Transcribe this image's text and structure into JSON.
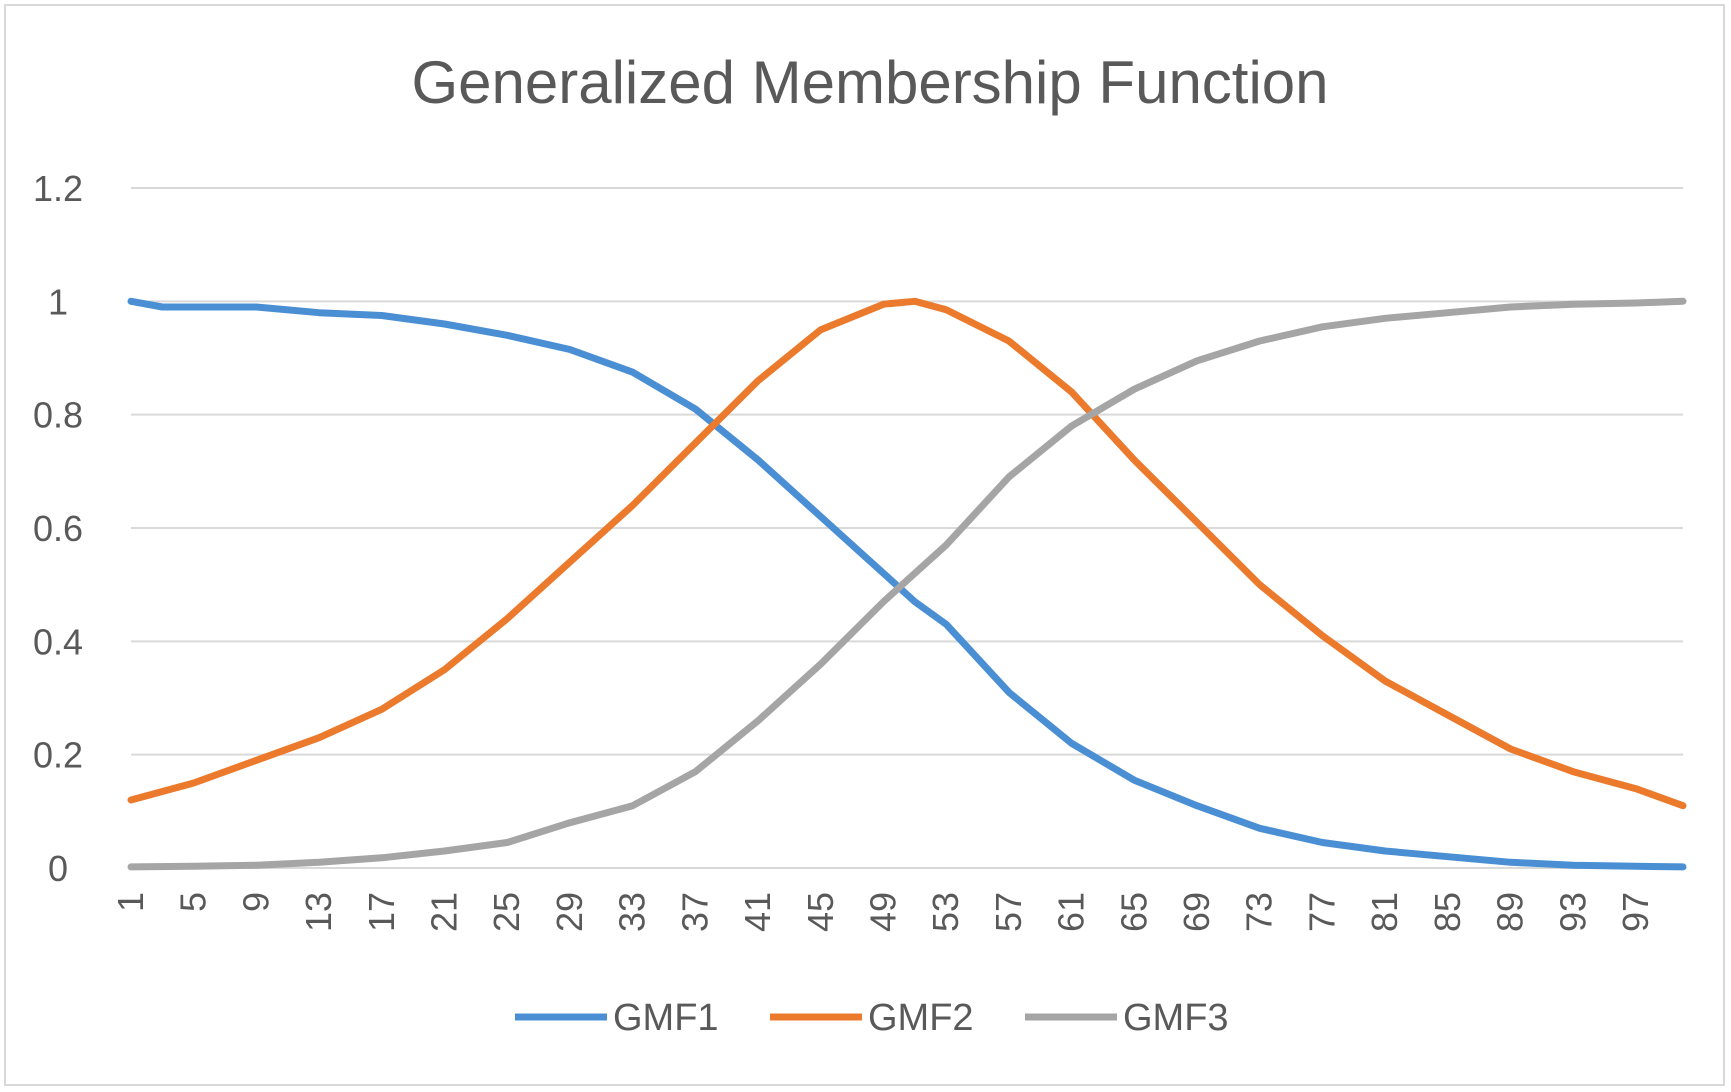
{
  "chart_data": {
    "type": "line",
    "title": "Generalized Membership Function",
    "xlabel": "",
    "ylabel": "",
    "ylim": [
      0,
      1.2
    ],
    "yticks": [
      "0",
      "0.2",
      "0.4",
      "0.6",
      "0.8",
      "1",
      "1.2"
    ],
    "xlim": [
      1,
      100
    ],
    "xticks": [
      "1",
      "5",
      "9",
      "13",
      "17",
      "21",
      "25",
      "29",
      "33",
      "37",
      "41",
      "45",
      "49",
      "53",
      "57",
      "61",
      "65",
      "69",
      "73",
      "77",
      "81",
      "85",
      "89",
      "93",
      "97"
    ],
    "grid": true,
    "legend": "bottom",
    "series": [
      {
        "name": "GMF1",
        "color": "#4a8fd4",
        "points": [
          [
            1,
            1.0
          ],
          [
            3,
            0.99
          ],
          [
            9,
            0.99
          ],
          [
            13,
            0.98
          ],
          [
            17,
            0.975
          ],
          [
            21,
            0.96
          ],
          [
            25,
            0.94
          ],
          [
            29,
            0.915
          ],
          [
            33,
            0.875
          ],
          [
            37,
            0.81
          ],
          [
            41,
            0.72
          ],
          [
            45,
            0.62
          ],
          [
            49,
            0.52
          ],
          [
            51,
            0.47
          ],
          [
            53,
            0.43
          ],
          [
            57,
            0.31
          ],
          [
            61,
            0.22
          ],
          [
            65,
            0.155
          ],
          [
            69,
            0.11
          ],
          [
            73,
            0.07
          ],
          [
            77,
            0.045
          ],
          [
            81,
            0.03
          ],
          [
            85,
            0.02
          ],
          [
            89,
            0.01
          ],
          [
            93,
            0.005
          ],
          [
            97,
            0.003
          ],
          [
            100,
            0.002
          ]
        ]
      },
      {
        "name": "GMF2",
        "color": "#ec7a2c",
        "points": [
          [
            1,
            0.12
          ],
          [
            5,
            0.15
          ],
          [
            9,
            0.19
          ],
          [
            13,
            0.23
          ],
          [
            17,
            0.28
          ],
          [
            21,
            0.35
          ],
          [
            25,
            0.44
          ],
          [
            29,
            0.54
          ],
          [
            33,
            0.64
          ],
          [
            37,
            0.75
          ],
          [
            41,
            0.86
          ],
          [
            45,
            0.95
          ],
          [
            49,
            0.995
          ],
          [
            51,
            1.0
          ],
          [
            53,
            0.985
          ],
          [
            57,
            0.93
          ],
          [
            61,
            0.84
          ],
          [
            65,
            0.72
          ],
          [
            69,
            0.61
          ],
          [
            73,
            0.5
          ],
          [
            77,
            0.41
          ],
          [
            81,
            0.33
          ],
          [
            85,
            0.27
          ],
          [
            89,
            0.21
          ],
          [
            93,
            0.17
          ],
          [
            97,
            0.14
          ],
          [
            100,
            0.11
          ]
        ]
      },
      {
        "name": "GMF3",
        "color": "#a5a5a5",
        "points": [
          [
            1,
            0.002
          ],
          [
            5,
            0.003
          ],
          [
            9,
            0.005
          ],
          [
            13,
            0.01
          ],
          [
            17,
            0.018
          ],
          [
            21,
            0.03
          ],
          [
            25,
            0.045
          ],
          [
            29,
            0.08
          ],
          [
            33,
            0.11
          ],
          [
            37,
            0.17
          ],
          [
            41,
            0.26
          ],
          [
            45,
            0.36
          ],
          [
            49,
            0.47
          ],
          [
            51,
            0.52
          ],
          [
            53,
            0.57
          ],
          [
            57,
            0.69
          ],
          [
            61,
            0.78
          ],
          [
            65,
            0.845
          ],
          [
            69,
            0.895
          ],
          [
            73,
            0.93
          ],
          [
            77,
            0.955
          ],
          [
            81,
            0.97
          ],
          [
            85,
            0.98
          ],
          [
            89,
            0.99
          ],
          [
            93,
            0.995
          ],
          [
            97,
            0.997
          ],
          [
            100,
            1.0
          ]
        ]
      }
    ]
  }
}
